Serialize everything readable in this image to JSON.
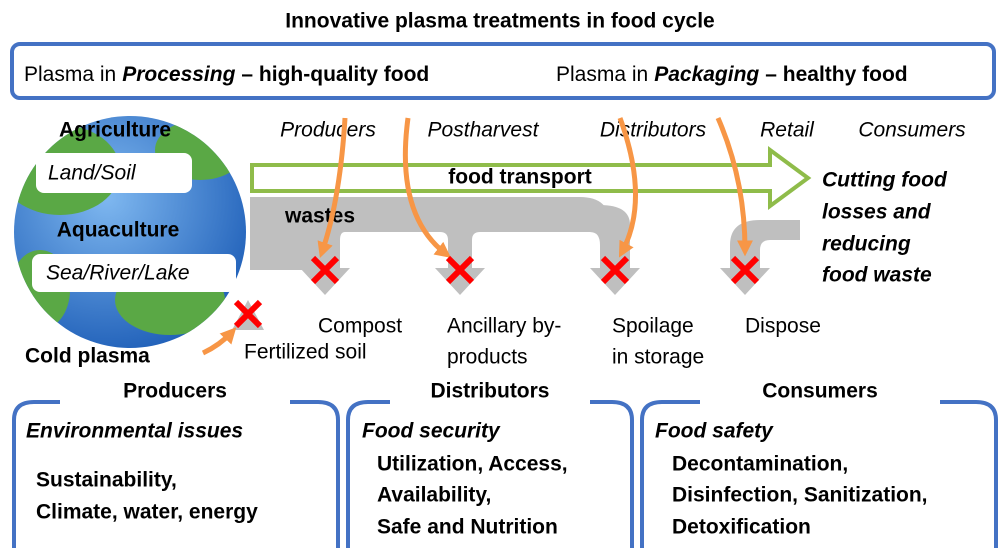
{
  "title": "Innovative plasma treatments in food cycle",
  "banner": [
    {
      "prefix": "Plasma in",
      "keyword": "Processing",
      "suffix": "– high-quality food"
    },
    {
      "prefix": "Plasma in",
      "keyword": "Packaging",
      "suffix": "– healthy food"
    }
  ],
  "globe": {
    "agriculture": "Agriculture",
    "land": "Land/Soil",
    "aquaculture": "Aquaculture",
    "water": "Sea/River/Lake"
  },
  "stages": [
    "Producers",
    "Postharvest",
    "Distributors",
    "Retail",
    "Consumers"
  ],
  "flows": {
    "transport": "food transport",
    "wastes": "wastes"
  },
  "goal": [
    "Cutting food",
    "losses and",
    "reducing",
    "food waste"
  ],
  "outcomes": {
    "compost": "Compost",
    "fertilized": "Fertilized soil",
    "ancillary": [
      "Ancillary by-",
      "products"
    ],
    "spoilage": [
      "Spoilage",
      "in storage"
    ],
    "dispose": "Dispose"
  },
  "cold_plasma": "Cold plasma",
  "panels": [
    {
      "title": "Producers",
      "heading": "Environmental issues",
      "lines": [
        "Sustainability,",
        "Climate, water, energy"
      ]
    },
    {
      "title": "Distributors",
      "heading": "Food security",
      "lines": [
        "Utilization, Access,",
        "Availability,",
        "Safe and Nutrition"
      ]
    },
    {
      "title": "Consumers",
      "heading": "Food safety",
      "lines": [
        "Decontamination,",
        "Disinfection, Sanitization,",
        "Detoxification"
      ]
    }
  ]
}
